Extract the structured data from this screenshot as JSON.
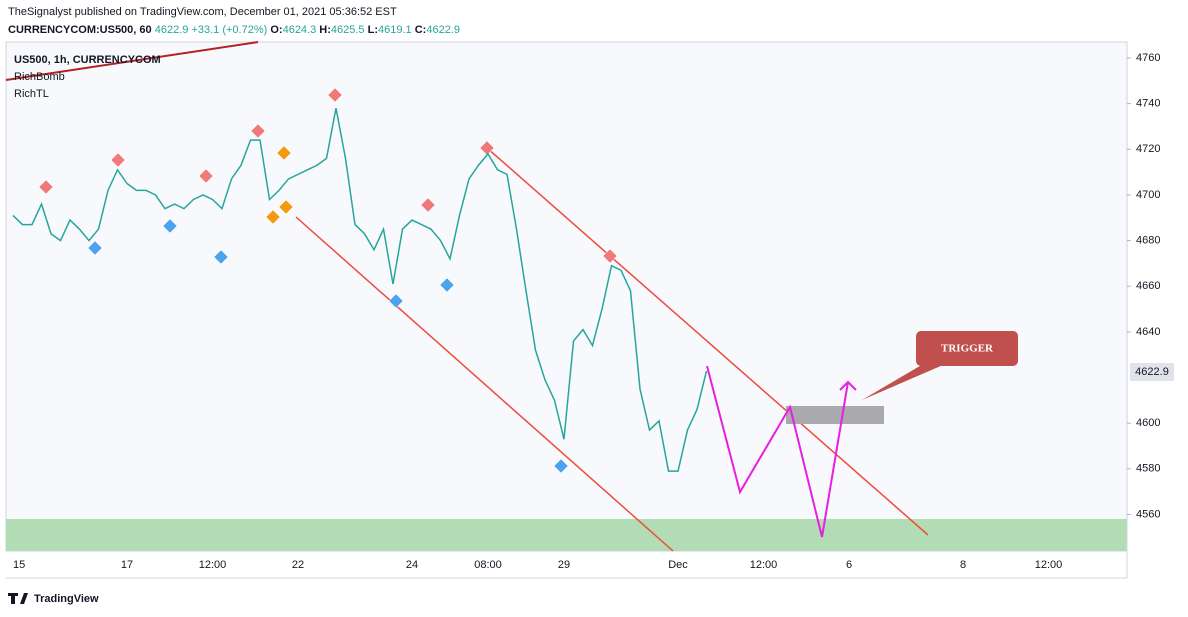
{
  "header": {
    "publisher": "TheSignalyst published on TradingView.com, December 01, 2021 05:36:52 EST"
  },
  "chart_data": {
    "type": "line",
    "title": "US500, 1h, CURRENCYCOM",
    "symbol": "CURRENCYCOM:US500, 60",
    "last": 4622.9,
    "change": "+33.1 (+0.72%)",
    "ohlc": [
      {
        "label": "O:",
        "value": 4624.3
      },
      {
        "label": "H:",
        "value": 4625.5
      },
      {
        "label": "L:",
        "value": 4619.1
      },
      {
        "label": "C:",
        "value": 4622.9
      }
    ],
    "indicators": [
      "RichBomb",
      "RichTL"
    ],
    "annotation": "TRIGGER",
    "categories": [
      "15",
      null,
      null,
      null,
      null,
      null,
      null,
      null,
      null,
      null,
      null,
      null,
      "17",
      null,
      null,
      null,
      null,
      null,
      null,
      null,
      null,
      "12:00",
      null,
      null,
      null,
      null,
      null,
      null,
      null,
      null,
      "22",
      null,
      null,
      null,
      null,
      null,
      null,
      null,
      null,
      null,
      null,
      null,
      "24",
      null,
      null,
      null,
      null,
      null,
      null,
      null,
      "08:00",
      null,
      null,
      null,
      null,
      null,
      null,
      null,
      "29",
      null,
      null,
      null,
      null,
      null,
      null,
      null,
      null,
      null,
      null,
      null,
      "Dec",
      null,
      null,
      null,
      null,
      null,
      null,
      null,
      null,
      "12:00",
      null,
      null,
      null,
      null,
      null,
      null,
      null,
      null,
      "6",
      null,
      null,
      null,
      null,
      null,
      null,
      null,
      null,
      null,
      null,
      null,
      "8",
      null,
      null,
      null,
      null,
      null,
      null,
      null,
      null,
      "12:00",
      null,
      null,
      null,
      null,
      null,
      null,
      null,
      null
    ],
    "series": [
      {
        "name": "US500",
        "color": "#26a69a",
        "values": [
          4691,
          4687,
          4687,
          4696,
          4683,
          4680,
          4689,
          4685,
          4680,
          4685,
          4702,
          4711,
          4705,
          4702,
          4702,
          4700,
          4694,
          4696,
          4694,
          4698,
          4700,
          4698,
          4694,
          4707,
          4713,
          4724,
          4724,
          4698,
          4702,
          4707,
          4709,
          4711,
          4713,
          4716,
          4738,
          4716,
          4687,
          4683,
          4676,
          4685,
          4661,
          4685,
          4689,
          4687,
          4685,
          4680,
          4672,
          4691,
          4707,
          4713,
          4718,
          4711,
          4709,
          4685,
          4658,
          4632,
          4619,
          4610,
          4593,
          4636,
          4641,
          4634,
          4650,
          4669,
          4667,
          4658,
          4615,
          4597,
          4601,
          4579,
          4579,
          4597,
          4606,
          4622.9,
          null,
          null,
          null,
          null,
          null,
          null,
          null,
          null,
          null,
          null,
          null,
          null,
          null,
          null,
          null,
          null,
          null,
          null,
          null,
          null,
          null,
          null,
          null,
          null,
          null,
          null,
          null,
          null,
          null,
          null,
          null,
          null,
          null,
          null,
          null,
          null,
          null,
          null,
          null,
          null,
          null,
          null,
          null,
          null
        ]
      }
    ],
    "ylim": [
      4544,
      4767
    ],
    "yticks": [
      4560,
      4580,
      4600,
      4640,
      4660,
      4680,
      4700,
      4720,
      4740,
      4760
    ],
    "grid": false
  },
  "footer": {
    "brand": "TradingView"
  }
}
